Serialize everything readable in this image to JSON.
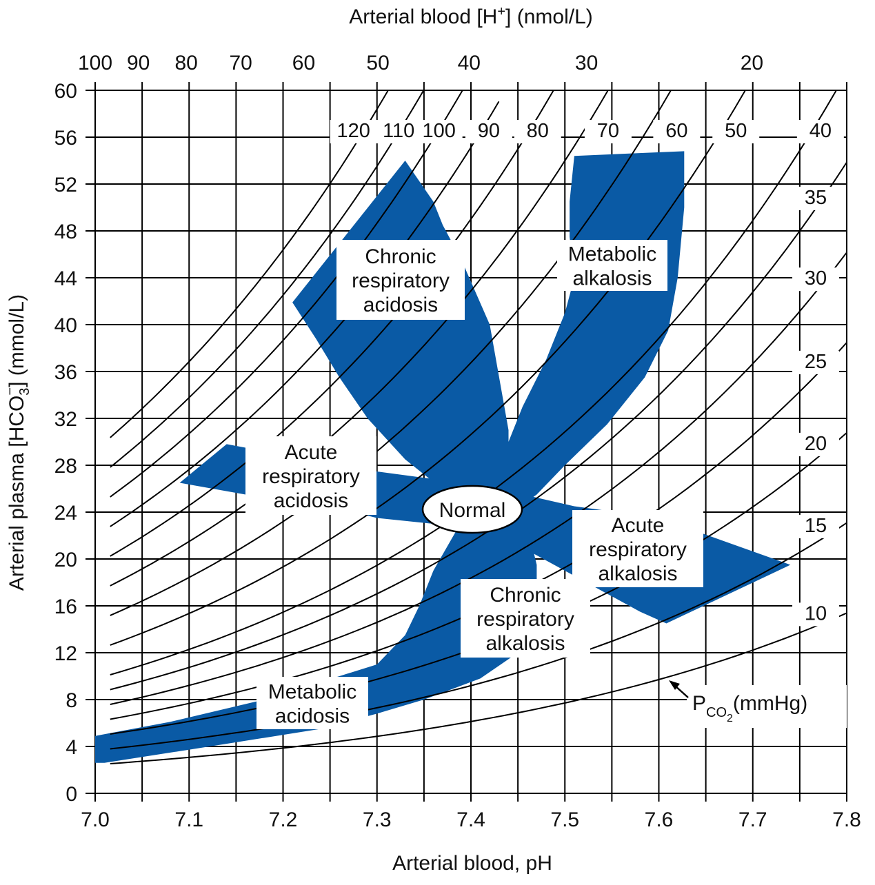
{
  "chart_data": {
    "type": "nomogram",
    "title": "",
    "xlabel": "Arterial blood, pH",
    "ylabel_parts": [
      "Arterial plasma [HCO",
      "3",
      "−",
      "] (mmol/L)"
    ],
    "top_axis_label_parts": [
      "Arterial blood [H",
      "+",
      "] (nmol/L)"
    ],
    "xlim": [
      7.0,
      7.8
    ],
    "ylim": [
      0,
      60
    ],
    "x_ticks": [
      "7.0",
      "7.1",
      "7.2",
      "7.3",
      "7.4",
      "7.5",
      "7.6",
      "7.7",
      "7.8"
    ],
    "y_ticks": [
      "0",
      "4",
      "8",
      "12",
      "16",
      "20",
      "24",
      "28",
      "32",
      "36",
      "40",
      "44",
      "48",
      "52",
      "56",
      "60"
    ],
    "top_ticks": [
      {
        "label": "100",
        "pH": 7.0
      },
      {
        "label": "90",
        "pH": 7.046
      },
      {
        "label": "80",
        "pH": 7.097
      },
      {
        "label": "70",
        "pH": 7.155
      },
      {
        "label": "60",
        "pH": 7.222
      },
      {
        "label": "50",
        "pH": 7.301
      },
      {
        "label": "40",
        "pH": 7.398
      },
      {
        "label": "30",
        "pH": 7.523
      },
      {
        "label": "20",
        "pH": 7.699
      }
    ],
    "pco2_series": {
      "name": "PCO2 (mmHg)",
      "name_parts": [
        "P",
        "CO",
        "2",
        "(mmHg)"
      ],
      "values": [
        120,
        110,
        100,
        90,
        80,
        70,
        60,
        50,
        40,
        35,
        30,
        25,
        20,
        15,
        10
      ],
      "labels": [
        "120",
        "110",
        "100",
        "90",
        "80",
        "70",
        "60",
        "50",
        "40",
        "35",
        "30",
        "25",
        "20",
        "15",
        "10"
      ]
    },
    "regions": [
      {
        "name": "Chronic respiratory acidosis",
        "label_lines": [
          "Chronic",
          "respiratory",
          "acidosis"
        ]
      },
      {
        "name": "Metabolic alkalosis",
        "label_lines": [
          "Metabolic",
          "alkalosis"
        ]
      },
      {
        "name": "Acute respiratory acidosis",
        "label_lines": [
          "Acute",
          "respiratory",
          "acidosis"
        ]
      },
      {
        "name": "Normal",
        "label_lines": [
          "Normal"
        ]
      },
      {
        "name": "Acute respiratory alkalosis",
        "label_lines": [
          "Acute",
          "respiratory",
          "alkalosis"
        ]
      },
      {
        "name": "Chronic respiratory alkalosis",
        "label_lines": [
          "Chronic",
          "respiratory",
          "alkalosis"
        ]
      },
      {
        "name": "Metabolic acidosis",
        "label_lines": [
          "Metabolic",
          "acidosis"
        ]
      }
    ],
    "colors": {
      "region_fill": "#0a5aa5",
      "lines": "#000000",
      "background": "#ffffff"
    }
  }
}
